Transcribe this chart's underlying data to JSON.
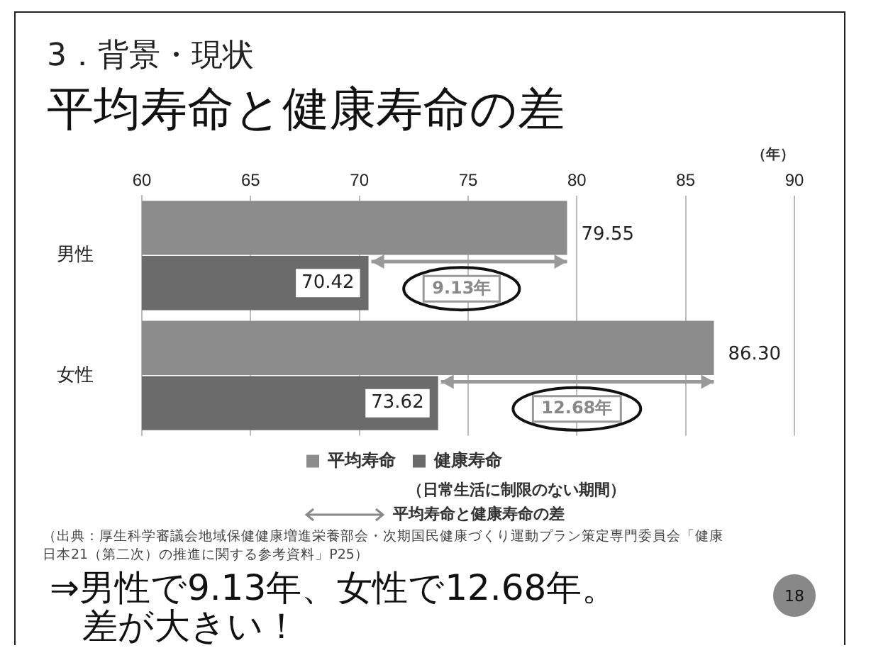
{
  "chart_data": {
    "type": "bar",
    "orientation": "horizontal",
    "subtitle": "3．背景・現状",
    "title": "平均寿命と健康寿命の差",
    "xlabel": "（年）",
    "categories": [
      "男性",
      "女性"
    ],
    "series": [
      {
        "name": "平均寿命",
        "color": "#8c8c8c",
        "values": [
          79.55,
          86.3
        ],
        "value_labels": [
          "79.55",
          "86.30"
        ]
      },
      {
        "name": "健康寿命",
        "color": "#6b6b6b",
        "values": [
          70.42,
          73.62
        ],
        "value_labels": [
          "70.42",
          "73.62"
        ]
      }
    ],
    "xlim": [
      60,
      90
    ],
    "xticks": [
      60,
      65,
      70,
      75,
      80,
      85,
      90
    ],
    "grid": "x",
    "legend": "bottom",
    "annotations": [
      {
        "text": "9.13年",
        "x": 74.7,
        "y": "男性"
      },
      {
        "text": "12.68年",
        "x": 80.0,
        "y": "女性"
      },
      "（日常生活に制限のない期間）",
      "平均寿命と健康寿命の差",
      "（出典：厚生科学審議会地域保健健康増進栄養部会・次期国民健康づくり運動プラン策定専門委員会「健康日本21（第二次）の推進に関する参考資料」P25）",
      "⇒男性で9.13年、女性で12.68年。",
      "差が大きい！",
      "18"
    ]
  }
}
